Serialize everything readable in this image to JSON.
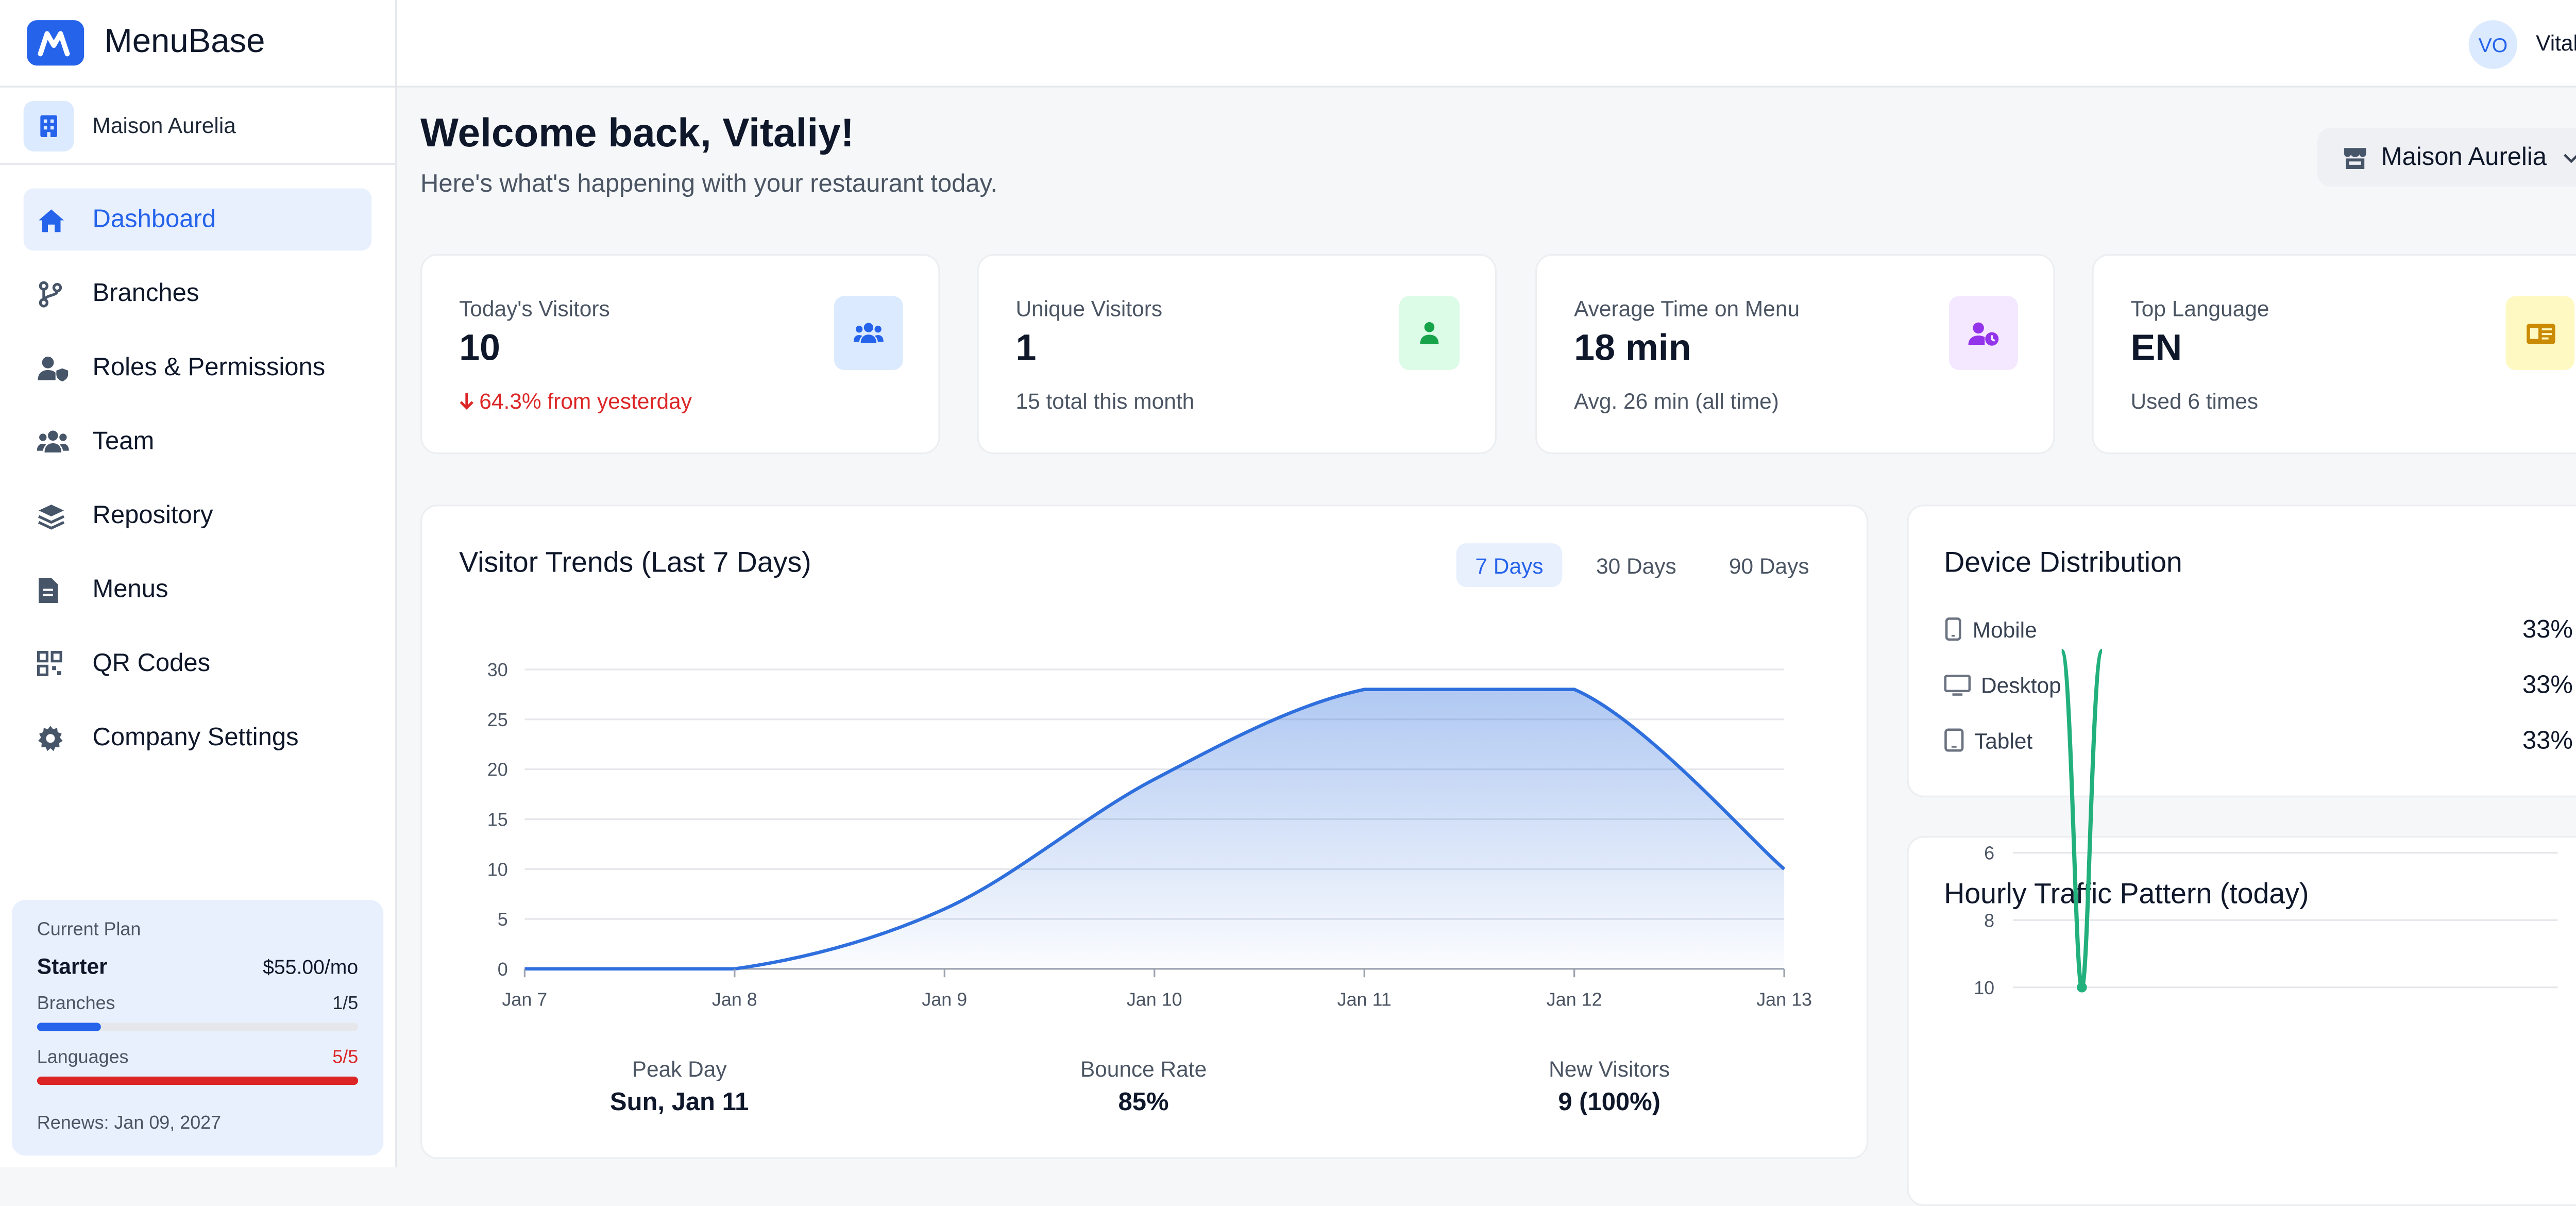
{
  "app": {
    "name": "MenuBase"
  },
  "org": {
    "name": "Maison Aurelia"
  },
  "sidebar": {
    "items": [
      {
        "label": "Dashboard",
        "icon": "home-icon",
        "active": true
      },
      {
        "label": "Branches",
        "icon": "branch-icon"
      },
      {
        "label": "Roles & Permissions",
        "icon": "user-shield-icon"
      },
      {
        "label": "Team",
        "icon": "team-icon"
      },
      {
        "label": "Repository",
        "icon": "layers-icon"
      },
      {
        "label": "Menus",
        "icon": "document-icon"
      },
      {
        "label": "QR Codes",
        "icon": "qr-code-icon"
      },
      {
        "label": "Company Settings",
        "icon": "gear-icon"
      }
    ]
  },
  "plan": {
    "heading": "Current Plan",
    "name": "Starter",
    "price": "$55.00/mo",
    "branches_label": "Branches",
    "branches_value": "1/5",
    "branches_fraction": 0.2,
    "languages_label": "Languages",
    "languages_value": "5/5",
    "languages_fraction": 1.0,
    "renews": "Renews: Jan 09, 2027"
  },
  "user": {
    "initials": "VO",
    "name": "Vitaliy"
  },
  "header": {
    "welcome": "Welcome back, Vitaliy!",
    "subtitle": "Here's what's happening with your restaurant today.",
    "branch_selector": "Maison Aurelia"
  },
  "stats": [
    {
      "label": "Today's Visitors",
      "value": "10",
      "sub": "64.3% from yesterday",
      "sub_color": "#dc2626"
    },
    {
      "label": "Unique Visitors",
      "value": "1",
      "sub": "15 total this month"
    },
    {
      "label": "Average Time on Menu",
      "value": "18 min",
      "sub": "Avg. 26 min (all time)"
    },
    {
      "label": "Top Language",
      "value": "EN",
      "sub": "Used 6 times"
    }
  ],
  "trends": {
    "title": "Visitor Trends (Last 7 Days)",
    "ranges": [
      "7 Days",
      "30 Days",
      "90 Days"
    ],
    "active_range": "7 Days",
    "metrics": [
      {
        "label": "Peak Day",
        "value": "Sun, Jan 11"
      },
      {
        "label": "Bounce Rate",
        "value": "85%"
      },
      {
        "label": "New Visitors",
        "value": "9 (100%)"
      }
    ]
  },
  "devices": {
    "title": "Device Distribution",
    "items": [
      {
        "label": "Mobile",
        "value": "33%"
      },
      {
        "label": "Desktop",
        "value": "33%"
      },
      {
        "label": "Tablet",
        "value": "33%"
      }
    ]
  },
  "hourly": {
    "title": "Hourly Traffic Pattern (today)"
  },
  "colors": {
    "accent": "#2563eb",
    "danger": "#dc2626",
    "line": "#2f6fdd",
    "hourly_line": "#22b07d"
  },
  "chart_data": [
    {
      "type": "area",
      "title": "Visitor Trends (Last 7 Days)",
      "categories": [
        "Jan 7",
        "Jan 8",
        "Jan 9",
        "Jan 10",
        "Jan 11",
        "Jan 12",
        "Jan 13"
      ],
      "values": [
        0,
        0,
        6,
        19,
        28,
        28,
        10
      ],
      "yticks": [
        0,
        5,
        10,
        15,
        20,
        25,
        30
      ],
      "ylim": [
        0,
        30
      ],
      "xlabel": "",
      "ylabel": "",
      "grid": true
    },
    {
      "type": "line",
      "title": "Hourly Traffic Pattern (today)",
      "yticks_visible": [
        6,
        8,
        10
      ],
      "peak": {
        "x": 2,
        "y": 10
      },
      "x": [
        0,
        1,
        2,
        3,
        4
      ],
      "values": [
        0,
        0,
        10,
        0,
        0
      ],
      "grid": true
    }
  ]
}
